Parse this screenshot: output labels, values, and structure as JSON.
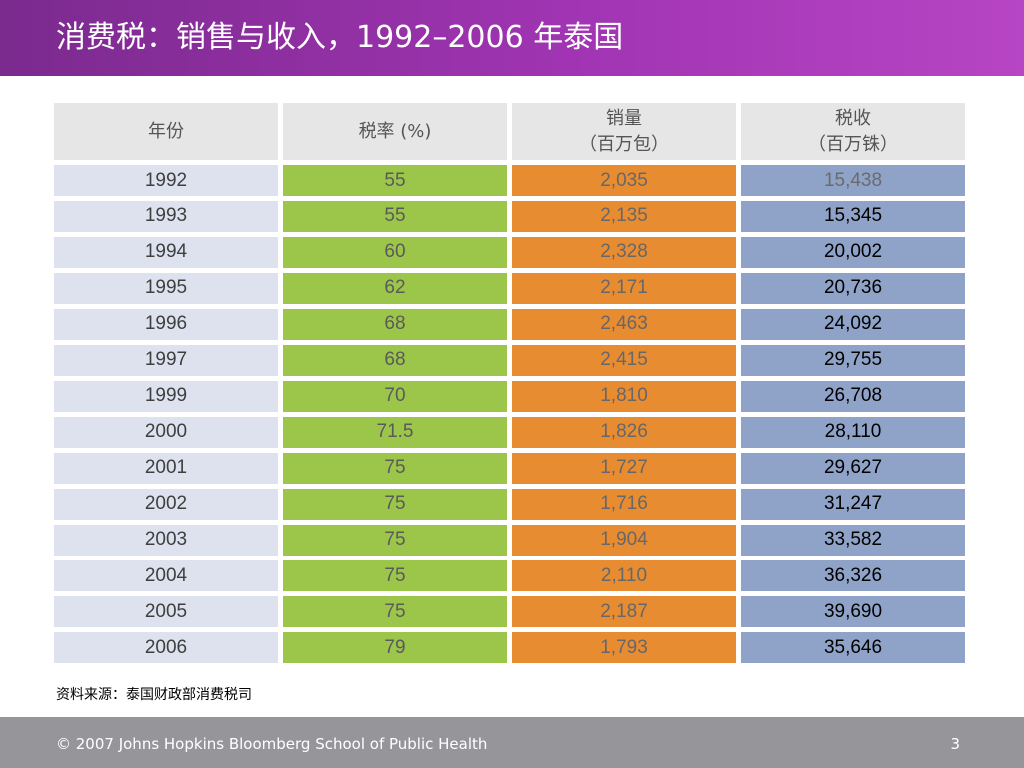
{
  "slide": {
    "title": "消费税：销售与收入，1992–2006 年泰国",
    "source": "资料来源：泰国财政部消费税司",
    "footer": "© 2007 Johns Hopkins Bloomberg School of Public Health",
    "page_number": "3"
  },
  "table": {
    "headers": [
      [
        "年份"
      ],
      [
        "税率 (%)"
      ],
      [
        "销量",
        "（百万包）"
      ],
      [
        "税收",
        "（百万铢）"
      ]
    ],
    "rows": [
      [
        "1992",
        "55",
        "2,035",
        "15,438"
      ],
      [
        "1993",
        "55",
        "2,135",
        "15,345"
      ],
      [
        "1994",
        "60",
        "2,328",
        "20,002"
      ],
      [
        "1995",
        "62",
        "2,171",
        "20,736"
      ],
      [
        "1996",
        "68",
        "2,463",
        "24,092"
      ],
      [
        "1997",
        "68",
        "2,415",
        "29,755"
      ],
      [
        "1999",
        "70",
        "1,810",
        "26,708"
      ],
      [
        "2000",
        "71.5",
        "1,826",
        "28,110"
      ],
      [
        "2001",
        "75",
        "1,727",
        "29,627"
      ],
      [
        "2002",
        "75",
        "1,716",
        "31,247"
      ],
      [
        "2003",
        "75",
        "1,904",
        "33,582"
      ],
      [
        "2004",
        "75",
        "2,110",
        "36,326"
      ],
      [
        "2005",
        "75",
        "2,187",
        "39,690"
      ],
      [
        "2006",
        "79",
        "1,793",
        "35,646"
      ]
    ]
  },
  "colors": {
    "title_bar": "#a034b2",
    "header_cell": "#e6e6e6",
    "year_column": "#dde2ee",
    "rate_column": "#9cc64a",
    "sales_column": "#e88c32",
    "revenue_column": "#8fa2c8",
    "footer_bar": "#96969a"
  }
}
